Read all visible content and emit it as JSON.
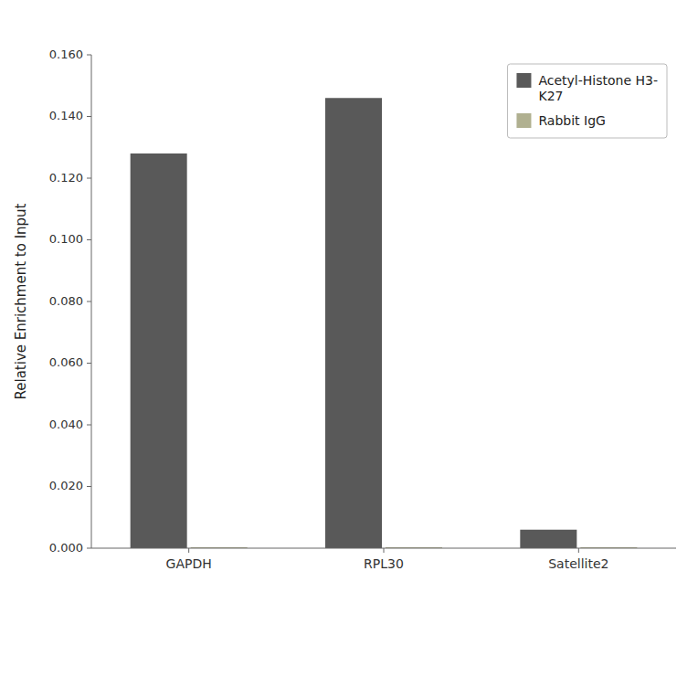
{
  "chart_data": {
    "type": "bar",
    "categories": [
      "GAPDH",
      "RPL30",
      "Satellite2"
    ],
    "series": [
      {
        "name": "Acetyl-Histone H3-\nK27",
        "color": "#595959",
        "values": [
          0.128,
          0.146,
          0.006
        ]
      },
      {
        "name": "Rabbit IgG",
        "color": "#b0b090",
        "values": [
          0.0003,
          0.0003,
          0.0003
        ]
      }
    ],
    "ylabel": "Relative Enrichment to Input",
    "ylim": [
      0,
      0.16
    ],
    "yticks": [
      {
        "value": 0.0,
        "label": "0.000"
      },
      {
        "value": 0.02,
        "label": "0.020"
      },
      {
        "value": 0.04,
        "label": "0.040"
      },
      {
        "value": 0.06,
        "label": "0.060"
      },
      {
        "value": 0.08,
        "label": "0.080"
      },
      {
        "value": 0.1,
        "label": "0.100"
      },
      {
        "value": 0.12,
        "label": "0.120"
      },
      {
        "value": 0.14,
        "label": "0.140"
      },
      {
        "value": 0.16,
        "label": "0.160"
      }
    ],
    "grid": false,
    "legend": "upper right"
  }
}
